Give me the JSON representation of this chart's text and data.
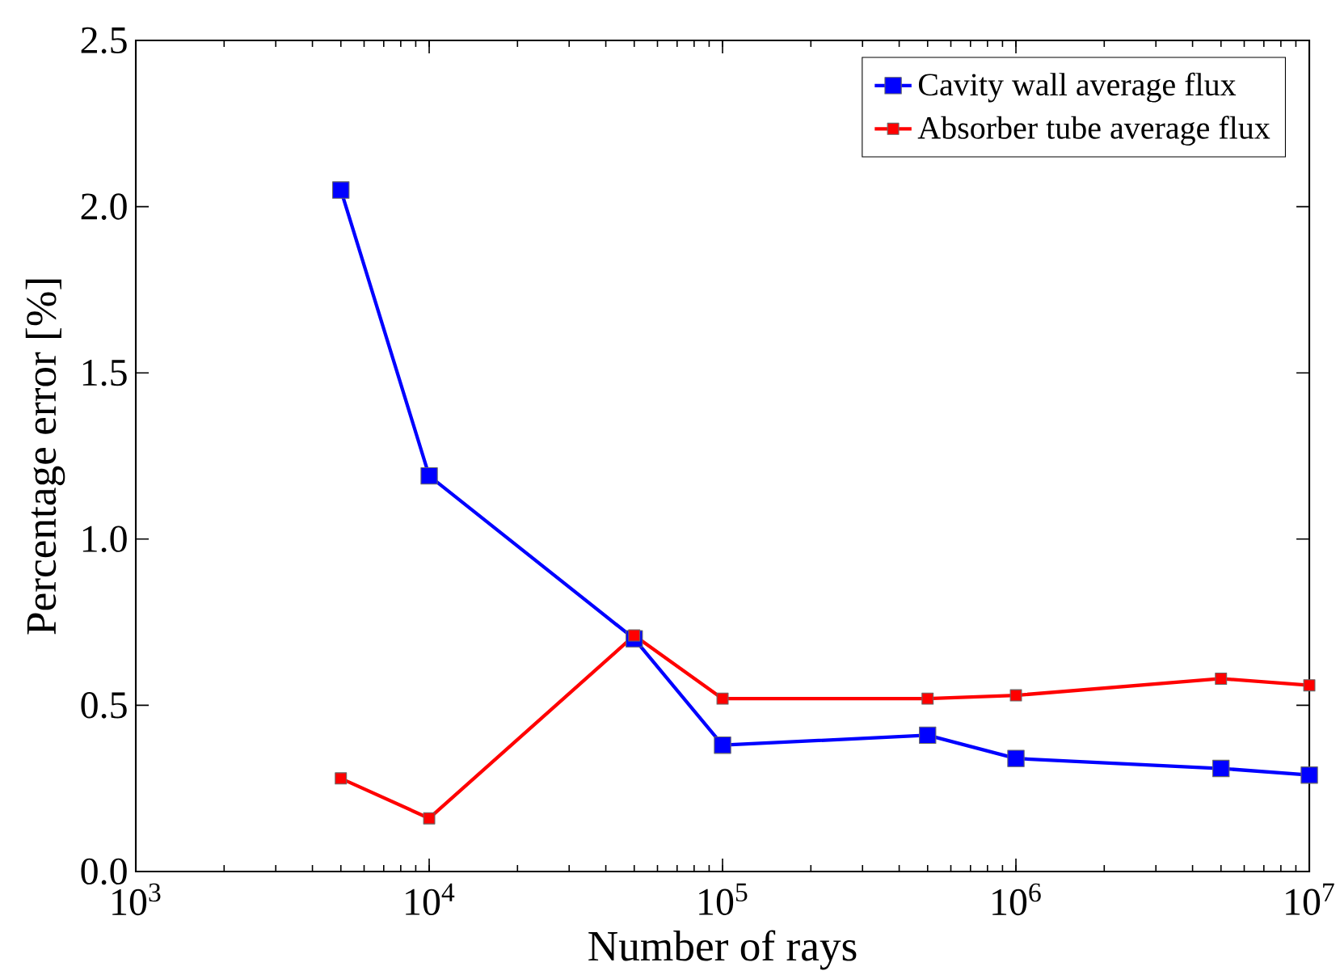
{
  "chart_data": {
    "type": "line",
    "xlabel": "Number of rays",
    "ylabel": "Percentage error [%]",
    "log": "x",
    "marker": "square",
    "line_style": "solid",
    "legend": "top right",
    "grid": false,
    "x": [
      5000,
      10000,
      50000,
      100000,
      500000,
      1000000,
      5000000,
      10000000
    ],
    "series": [
      {
        "name": "Cavity wall average flux",
        "color": "#0000ff",
        "values": [
          2.05,
          1.19,
          0.7,
          0.38,
          0.41,
          0.34,
          0.31,
          0.29
        ]
      },
      {
        "name": "Absorber tube average flux",
        "color": "#ff0000",
        "values": [
          0.28,
          0.16,
          0.71,
          0.52,
          0.52,
          0.53,
          0.58,
          0.56
        ]
      }
    ],
    "xlim": [
      1000,
      10000000
    ],
    "xticks": [
      {
        "value": 1000,
        "label": "10$^{3}$"
      },
      {
        "value": 10000,
        "label": "10$^{4}$"
      },
      {
        "value": 100000,
        "label": "10$^{5}$"
      },
      {
        "value": 1000000,
        "label": "10$^{6}$"
      },
      {
        "value": 10000000,
        "label": "10$^{7}$"
      }
    ],
    "ylim": [
      0,
      2.5
    ],
    "yticks": [
      {
        "value": 0,
        "label": "0.0"
      },
      {
        "value": 0.5,
        "label": "0.5"
      },
      {
        "value": 1.0,
        "label": "1.0"
      },
      {
        "value": 1.5,
        "label": "1.5"
      },
      {
        "value": 2.0,
        "label": "2.0"
      },
      {
        "value": 2.5,
        "label": "2.5"
      }
    ]
  }
}
